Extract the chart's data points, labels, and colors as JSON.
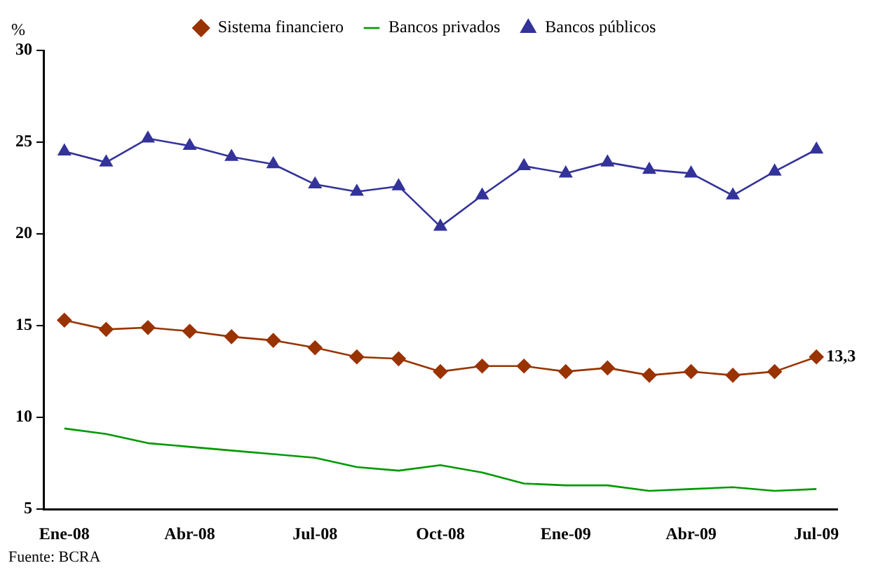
{
  "chart_data": {
    "type": "line",
    "ylabel": "%",
    "categories": [
      "Ene-08",
      null,
      null,
      "Abr-08",
      null,
      null,
      "Jul-08",
      null,
      null,
      "Oct-08",
      null,
      null,
      "Ene-09",
      null,
      null,
      "Abr-09",
      null,
      null,
      "Jul-09"
    ],
    "series": [
      {
        "name": "Sistema financiero",
        "color": "#993300",
        "marker": "diamond",
        "values": [
          15.3,
          14.8,
          14.9,
          14.7,
          14.4,
          14.2,
          13.8,
          13.3,
          13.2,
          12.5,
          12.8,
          12.8,
          12.5,
          12.7,
          12.3,
          12.5,
          12.3,
          12.5,
          13.3
        ],
        "value_labels": [
          null,
          null,
          null,
          null,
          null,
          null,
          null,
          null,
          null,
          null,
          null,
          null,
          null,
          null,
          null,
          null,
          null,
          null,
          "13,3"
        ]
      },
      {
        "name": "Bancos privados",
        "color": "#009900",
        "marker": "none",
        "values": [
          9.4,
          9.1,
          8.6,
          8.4,
          8.2,
          8.0,
          7.8,
          7.3,
          7.1,
          7.4,
          7.0,
          6.4,
          6.3,
          6.3,
          6.0,
          6.1,
          6.2,
          6.0,
          6.1
        ]
      },
      {
        "name": "Bancos públicos",
        "color": "#333399",
        "marker": "triangle",
        "values": [
          24.5,
          23.9,
          25.2,
          24.8,
          24.2,
          23.8,
          22.7,
          22.3,
          22.6,
          20.4,
          22.1,
          23.7,
          23.3,
          23.9,
          23.5,
          23.3,
          22.1,
          23.4,
          24.6
        ]
      }
    ],
    "ylim": [
      5,
      30
    ],
    "yticks": [
      5,
      10,
      15,
      20,
      25,
      30
    ],
    "grid": false,
    "legend": "top",
    "annotations": [
      "Fuente: BCRA"
    ]
  }
}
